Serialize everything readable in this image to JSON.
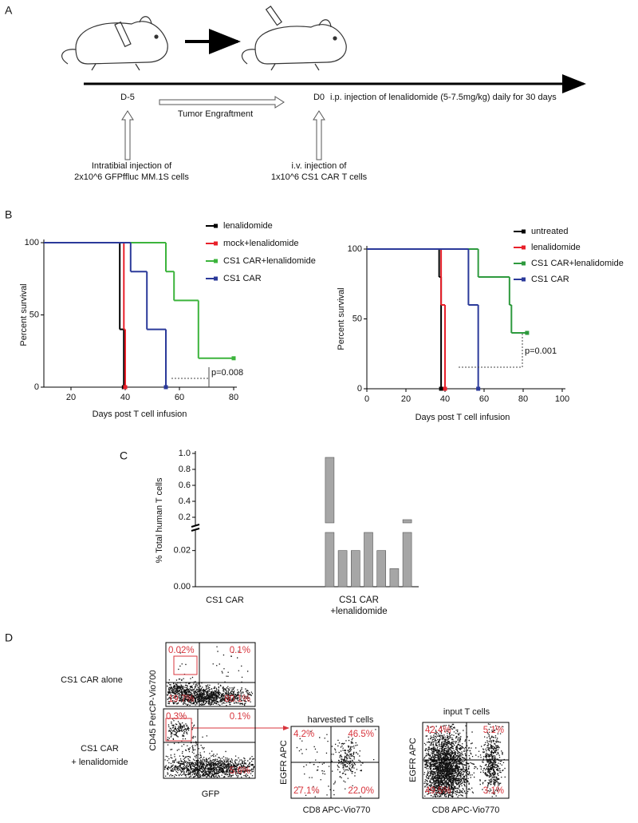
{
  "panel_a": {
    "label": "A",
    "day_start": "D-5",
    "day_zero": "D0",
    "treatment": "i.p. injection of lenalidomide (5-7.5mg/kg) daily for 30 days",
    "engraftment": "Tumor Engraftment",
    "tumor_injection": [
      "Intratibial injection of",
      "2x10^6 GFPffluc MM.1S cells"
    ],
    "car_injection": [
      "i.v. injection of",
      "1x10^6 CS1 CAR T cells"
    ]
  },
  "panel_b": {
    "label": "B"
  },
  "panel_c": {
    "label": "C"
  },
  "chart_data": [
    {
      "type": "line",
      "step": true,
      "y_label": "Percent survival",
      "x_label": "Days post T cell infusion",
      "xlim": [
        10,
        80
      ],
      "xticks": [
        20,
        40,
        60,
        80
      ],
      "ylim": [
        0,
        100
      ],
      "yticks": [
        0,
        50,
        100
      ],
      "annotation": "p=0.008",
      "series": [
        {
          "name": "lenalidomide",
          "color": "#000000",
          "x": [
            10,
            38,
            39.5
          ],
          "values": [
            100,
            40,
            0
          ]
        },
        {
          "name": "mock+lenalidomide",
          "color": "#e8202a",
          "x": [
            10,
            39.5,
            40
          ],
          "values": [
            100,
            40,
            0
          ]
        },
        {
          "name": "CS1 CAR+lenalidomide",
          "color": "#3cb43c",
          "x": [
            10,
            55,
            58,
            67,
            80
          ],
          "values": [
            100,
            80,
            60,
            20,
            20
          ]
        },
        {
          "name": "CS1 CAR",
          "color": "#2b3a9a",
          "x": [
            10,
            42,
            48,
            55
          ],
          "values": [
            100,
            80,
            40,
            0
          ]
        }
      ]
    },
    {
      "type": "line",
      "step": true,
      "y_label": "Percent survival",
      "x_label": "Days post T cell infusion",
      "xlim": [
        0,
        100
      ],
      "xticks": [
        0,
        20,
        40,
        60,
        80,
        100
      ],
      "ylim": [
        0,
        100
      ],
      "yticks": [
        0,
        50,
        100
      ],
      "annotation": "p=0.001",
      "series": [
        {
          "name": "untreated",
          "color": "#000000",
          "x": [
            0,
            37,
            38
          ],
          "values": [
            100,
            80,
            0
          ]
        },
        {
          "name": "lenalidomide",
          "color": "#e8202a",
          "x": [
            0,
            38,
            40
          ],
          "values": [
            100,
            60,
            0
          ]
        },
        {
          "name": "CS1 CAR+lenalidomide",
          "color": "#2e9a3e",
          "x": [
            0,
            57,
            73,
            74,
            82
          ],
          "values": [
            100,
            80,
            60,
            40,
            40
          ]
        },
        {
          "name": "CS1 CAR",
          "color": "#2b3a9a",
          "x": [
            0,
            52,
            57
          ],
          "values": [
            100,
            60,
            0
          ]
        }
      ]
    },
    {
      "type": "bar",
      "y_label": "% Total human T cells",
      "categories": [
        "CS1 CAR",
        "CS1 CAR\n+lenalidomide"
      ],
      "groups": [
        [],
        [
          0.95,
          0.02,
          0.02,
          0.03,
          0.02,
          0.01,
          0.17
        ]
      ],
      "color": "#a6a6a6",
      "ylim": [
        0,
        0.03
      ],
      "yticks": [
        {
          "value": 0,
          "label": "0.00"
        },
        0.02
      ],
      "ylim_upper": [
        0.13,
        1
      ],
      "yticks_upper": [
        0.2,
        0.4,
        0.6,
        0.8,
        {
          "value": 1,
          "label": "1.0"
        }
      ]
    }
  ],
  "panel_d": {
    "label": "D",
    "y_label": "CD45 PerCP-Vio700",
    "x_label": "GFP",
    "rows": [
      {
        "label": [
          "CS1 CAR alone"
        ],
        "quadrants": {
          "tl": "0.02%",
          "tr": "0.1%",
          "bl": "19.7%",
          "br": "80.1%"
        }
      },
      {
        "label": [
          "CS1 CAR",
          "+ lenalidomide"
        ],
        "quadrants": {
          "tl": "0.3%",
          "tr": "0.1%",
          "br": "5.6%"
        }
      }
    ],
    "harvested": {
      "title": "harvested T cells",
      "y_label": "EGFR APC",
      "x_label": "CD8 APC-Vio770",
      "quadrants": {
        "tl": "4.2%",
        "tr": "46.5%",
        "bl": "27.1%",
        "br": "22.0%"
      }
    },
    "input": {
      "title": "input T cells",
      "y_label": "EGFR APC",
      "x_label": "CD8 APC-Vio770",
      "quadrants": {
        "tl": "42.4%",
        "tr": "5.1%",
        "bl": "49.5%",
        "br": "3.1%"
      }
    }
  }
}
